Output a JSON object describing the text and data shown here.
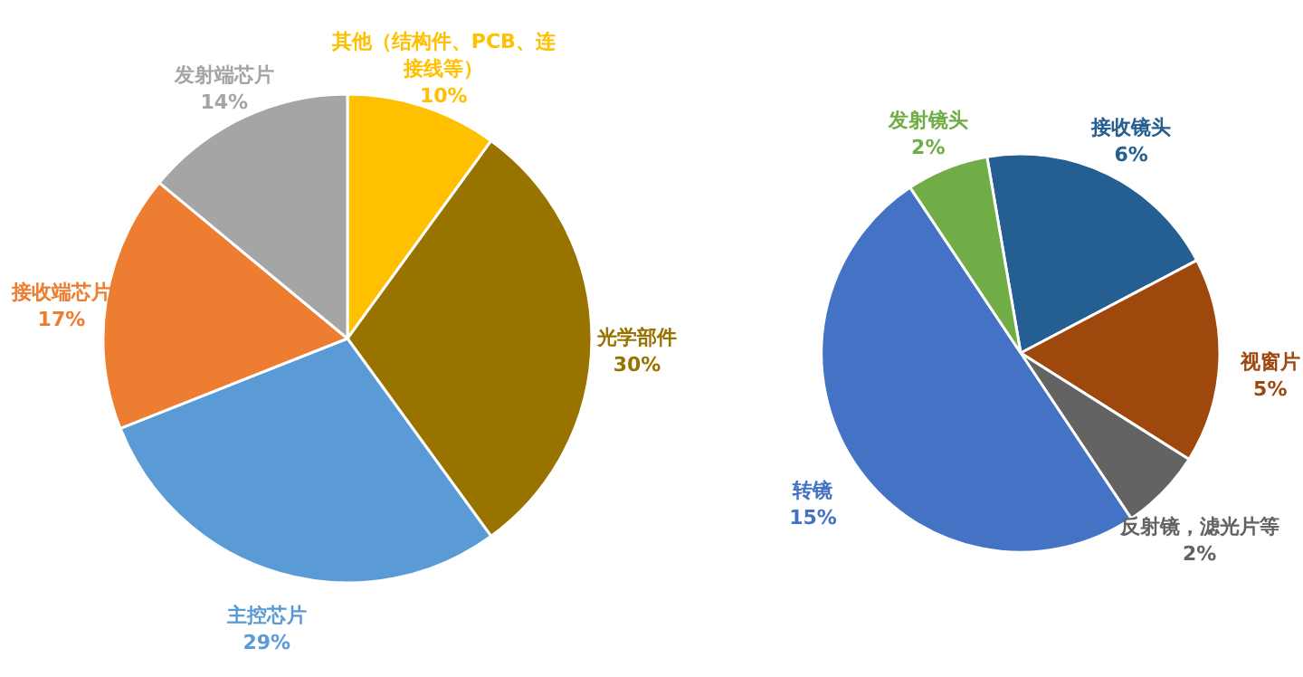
{
  "chart_data": [
    {
      "type": "pie",
      "categories": [
        "其他（结构件、PCB、连接线等）",
        "光学部件",
        "主控芯片",
        "接收端芯片",
        "发射端芯片"
      ],
      "values": [
        10,
        30,
        29,
        17,
        14
      ],
      "colors": [
        "#ffc000",
        "#997300",
        "#5b9bd5",
        "#ed7d31",
        "#a5a5a5"
      ],
      "value_labels": [
        "10%",
        "30%",
        "29%",
        "17%",
        "14%"
      ]
    },
    {
      "type": "pie",
      "categories": [
        "接收镜头",
        "视窗片",
        "反射镜，滤光片等",
        "转镜",
        "发射镜头"
      ],
      "values": [
        6,
        5,
        2,
        15,
        2
      ],
      "colors": [
        "#255e91",
        "#9e480e",
        "#636363",
        "#4472c4",
        "#70ad47"
      ],
      "value_labels": [
        "6%",
        "5%",
        "2%",
        "15%",
        "2%"
      ]
    }
  ]
}
